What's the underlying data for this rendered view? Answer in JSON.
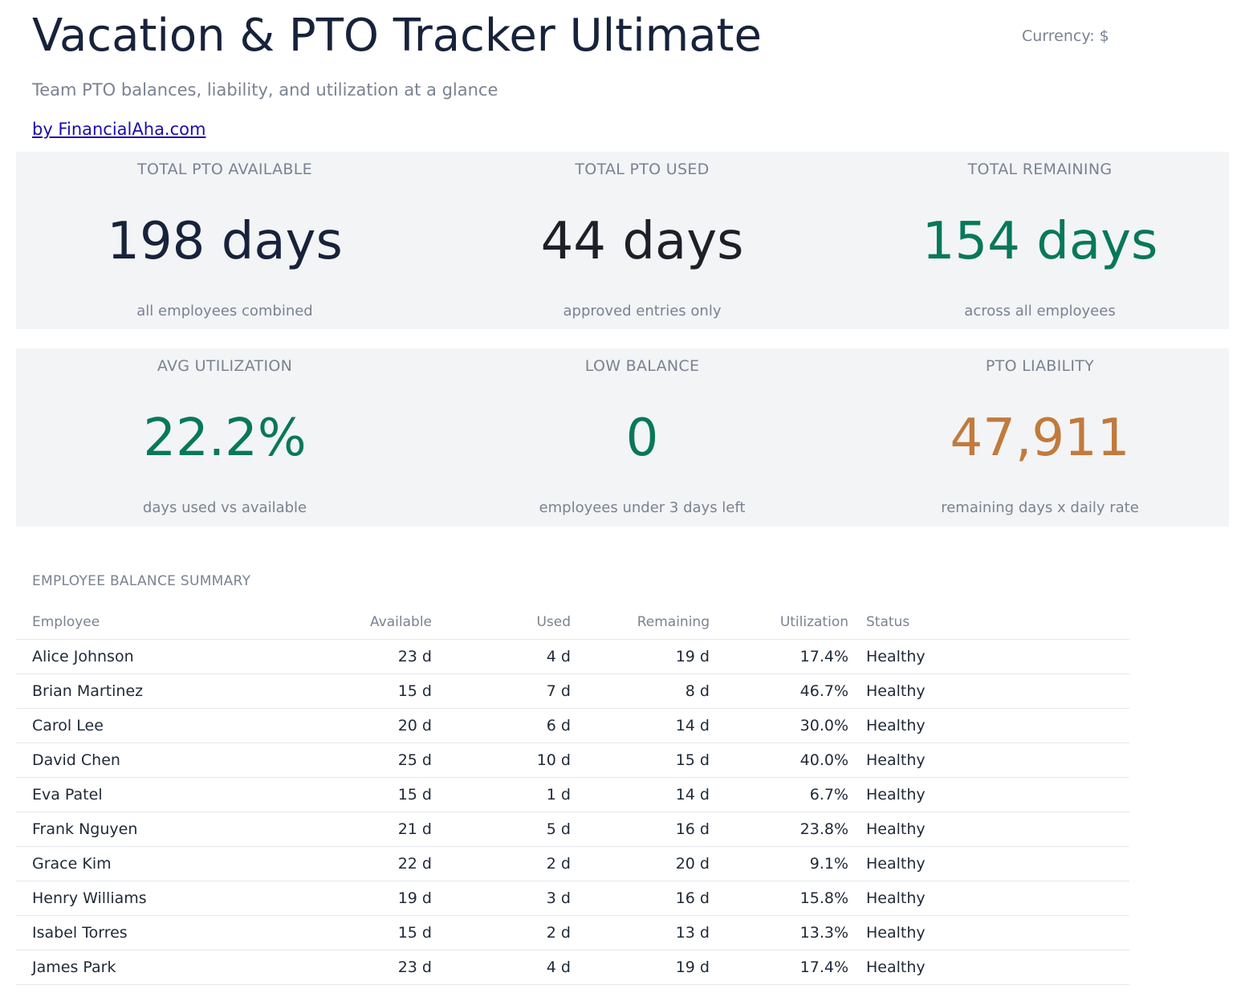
{
  "header": {
    "title": "Vacation & PTO Tracker Ultimate",
    "subtitle": "Team PTO balances, liability, and utilization at a glance",
    "link_text": "by FinancialAha.com",
    "currency": "Currency: $"
  },
  "kpis": [
    {
      "label": "TOTAL PTO AVAILABLE",
      "value": "198 days",
      "note": "all employees combined",
      "color": "#17223b"
    },
    {
      "label": "TOTAL PTO USED",
      "value": "44 days",
      "note": "approved entries only",
      "color": "#1f1f28"
    },
    {
      "label": "TOTAL REMAINING",
      "value": "154 days",
      "note": "across all employees",
      "color": "#07785a"
    },
    {
      "label": "AVG UTILIZATION",
      "value": "22.2%",
      "note": "days used vs available",
      "color": "#07785a"
    },
    {
      "label": "LOW BALANCE",
      "value": "0",
      "note": "employees under 3 days left",
      "color": "#07785a"
    },
    {
      "label": "PTO LIABILITY",
      "value": "47,911",
      "note": "remaining days x daily rate",
      "color": "#c27a3c"
    }
  ],
  "summary": {
    "title": "EMPLOYEE BALANCE SUMMARY",
    "columns": [
      "Employee",
      "Available",
      "Used",
      "Remaining",
      "Utilization",
      "Status"
    ],
    "rows": [
      [
        "Alice Johnson",
        "23 d",
        "4 d",
        "19 d",
        "17.4%",
        "Healthy"
      ],
      [
        "Brian Martinez",
        "15 d",
        "7 d",
        "8 d",
        "46.7%",
        "Healthy"
      ],
      [
        "Carol Lee",
        "20 d",
        "6 d",
        "14 d",
        "30.0%",
        "Healthy"
      ],
      [
        "David Chen",
        "25 d",
        "10 d",
        "15 d",
        "40.0%",
        "Healthy"
      ],
      [
        "Eva Patel",
        "15 d",
        "1 d",
        "14 d",
        "6.7%",
        "Healthy"
      ],
      [
        "Frank Nguyen",
        "21 d",
        "5 d",
        "16 d",
        "23.8%",
        "Healthy"
      ],
      [
        "Grace Kim",
        "22 d",
        "2 d",
        "20 d",
        "9.1%",
        "Healthy"
      ],
      [
        "Henry Williams",
        "19 d",
        "3 d",
        "16 d",
        "15.8%",
        "Healthy"
      ],
      [
        "Isabel Torres",
        "15 d",
        "2 d",
        "13 d",
        "13.3%",
        "Healthy"
      ],
      [
        "James Park",
        "23 d",
        "4 d",
        "19 d",
        "17.4%",
        "Healthy"
      ]
    ]
  }
}
